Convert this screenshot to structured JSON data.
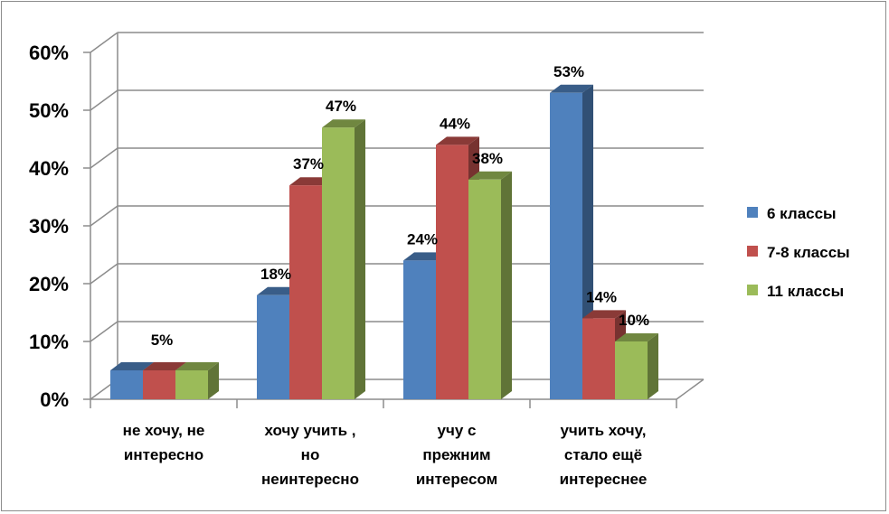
{
  "chart_data": {
    "type": "bar",
    "title": "",
    "xlabel": "",
    "ylabel": "",
    "ylim": [
      0,
      60
    ],
    "y_tick_step": 10,
    "y_tick_labels": [
      "0%",
      "10%",
      "20%",
      "30%",
      "40%",
      "50%",
      "60%"
    ],
    "grid": true,
    "style": "3d-clustered-column",
    "legend_position": "right",
    "categories": [
      [
        "не хочу, не",
        "интересно"
      ],
      [
        "хочу учить ,",
        "но",
        "неинтересно"
      ],
      [
        "учу с",
        "прежним",
        "интересом"
      ],
      [
        "учить хочу,",
        "стало ещё",
        "интереснее"
      ]
    ],
    "series": [
      {
        "name": "6 классы",
        "color": "#4f81bd",
        "values": [
          5,
          18,
          24,
          53
        ]
      },
      {
        "name": "7-8 классы",
        "color": "#c0504d",
        "values": [
          5,
          37,
          44,
          14
        ]
      },
      {
        "name": "11 классы",
        "color": "#9bbb59",
        "values": [
          5,
          47,
          38,
          10
        ]
      }
    ],
    "data_labels": [
      [
        "",
        "18%",
        "24%",
        "53%"
      ],
      [
        "5%",
        "37%",
        "44%",
        "14%"
      ],
      [
        "",
        "47%",
        "38%",
        "10%"
      ]
    ]
  }
}
